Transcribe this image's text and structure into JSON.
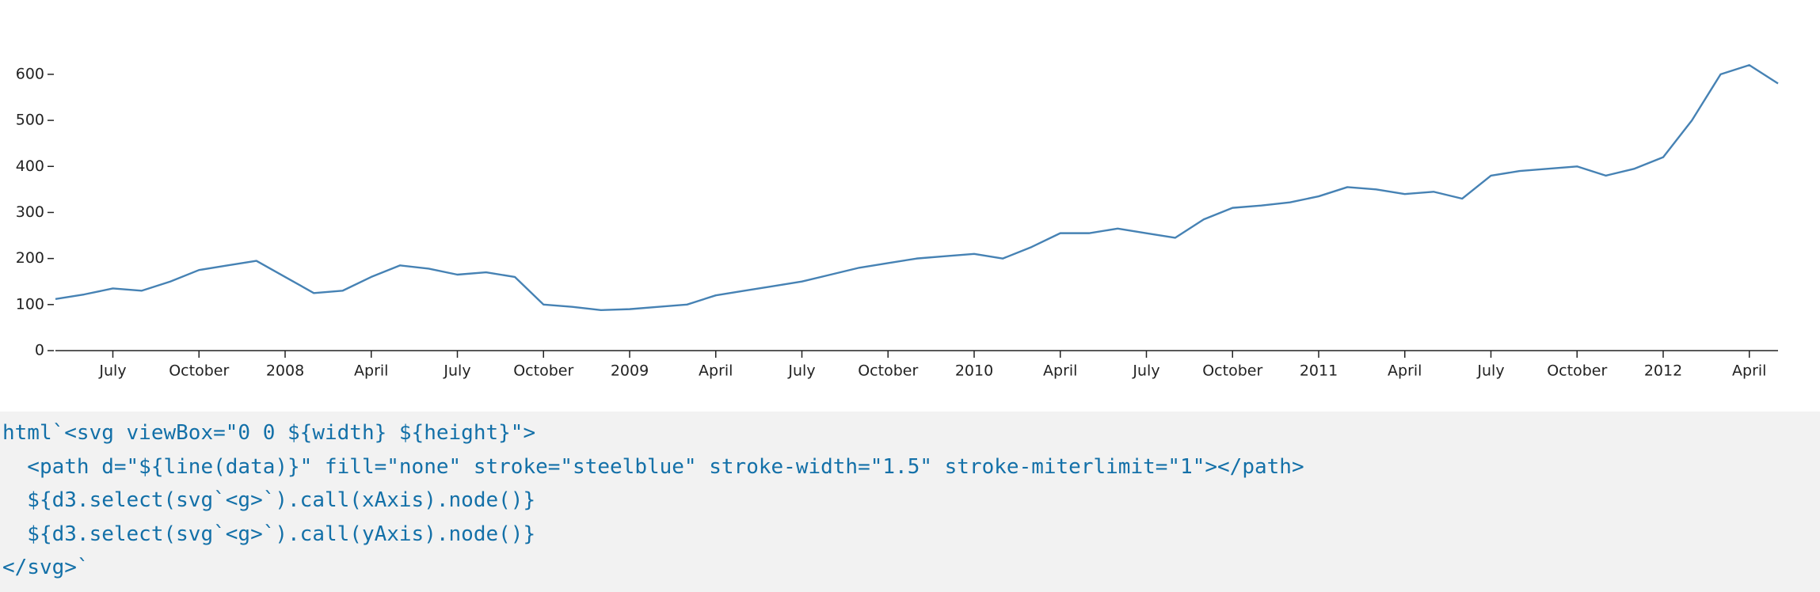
{
  "chart_data": {
    "type": "line",
    "x": [
      "2007-05",
      "2007-06",
      "2007-07",
      "2007-08",
      "2007-09",
      "2007-10",
      "2007-11",
      "2007-12",
      "2008-01",
      "2008-02",
      "2008-03",
      "2008-04",
      "2008-05",
      "2008-06",
      "2008-07",
      "2008-08",
      "2008-09",
      "2008-10",
      "2008-11",
      "2008-12",
      "2009-01",
      "2009-02",
      "2009-03",
      "2009-04",
      "2009-05",
      "2009-06",
      "2009-07",
      "2009-08",
      "2009-09",
      "2009-10",
      "2009-11",
      "2009-12",
      "2010-01",
      "2010-02",
      "2010-03",
      "2010-04",
      "2010-05",
      "2010-06",
      "2010-07",
      "2010-08",
      "2010-09",
      "2010-10",
      "2010-11",
      "2010-12",
      "2011-01",
      "2011-02",
      "2011-03",
      "2011-04",
      "2011-05",
      "2011-06",
      "2011-07",
      "2011-08",
      "2011-09",
      "2011-10",
      "2011-11",
      "2011-12",
      "2012-01",
      "2012-02",
      "2012-03",
      "2012-04",
      "2012-05"
    ],
    "series": [
      {
        "color": "#4682b4",
        "values": [
          112,
          122,
          135,
          130,
          150,
          175,
          185,
          195,
          160,
          125,
          130,
          160,
          185,
          178,
          165,
          170,
          160,
          100,
          95,
          88,
          90,
          95,
          100,
          120,
          130,
          140,
          150,
          165,
          180,
          190,
          200,
          205,
          210,
          200,
          225,
          255,
          255,
          265,
          255,
          245,
          285,
          310,
          315,
          322,
          335,
          355,
          350,
          340,
          345,
          330,
          380,
          390,
          395,
          400,
          380,
          395,
          420,
          500,
          600,
          620,
          580
        ]
      }
    ],
    "xlim": [
      "2007-05",
      "2012-05"
    ],
    "xticks": [
      {
        "value": "2007-07",
        "label": "July"
      },
      {
        "value": "2007-10",
        "label": "October"
      },
      {
        "value": "2008-01",
        "label": "2008"
      },
      {
        "value": "2008-04",
        "label": "April"
      },
      {
        "value": "2008-07",
        "label": "July"
      },
      {
        "value": "2008-10",
        "label": "October"
      },
      {
        "value": "2009-01",
        "label": "2009"
      },
      {
        "value": "2009-04",
        "label": "April"
      },
      {
        "value": "2009-07",
        "label": "July"
      },
      {
        "value": "2009-10",
        "label": "October"
      },
      {
        "value": "2010-01",
        "label": "2010"
      },
      {
        "value": "2010-04",
        "label": "April"
      },
      {
        "value": "2010-07",
        "label": "July"
      },
      {
        "value": "2010-10",
        "label": "October"
      },
      {
        "value": "2011-01",
        "label": "2011"
      },
      {
        "value": "2011-04",
        "label": "April"
      },
      {
        "value": "2011-07",
        "label": "July"
      },
      {
        "value": "2011-10",
        "label": "October"
      },
      {
        "value": "2012-01",
        "label": "2012"
      },
      {
        "value": "2012-04",
        "label": "April"
      }
    ],
    "ylim": [
      0,
      650
    ],
    "yticks": [
      0,
      100,
      200,
      300,
      400,
      500,
      600
    ]
  },
  "code": {
    "lines": [
      "html`<svg viewBox=\"0 0 ${width} ${height}\">",
      "  <path d=\"${line(data)}\" fill=\"none\" stroke=\"steelblue\" stroke-width=\"1.5\" stroke-miterlimit=\"1\"></path>",
      "  ${d3.select(svg`<g>`).call(xAxis).node()}",
      "  ${d3.select(svg`<g>`).call(yAxis).node()}",
      "</svg>`"
    ]
  }
}
